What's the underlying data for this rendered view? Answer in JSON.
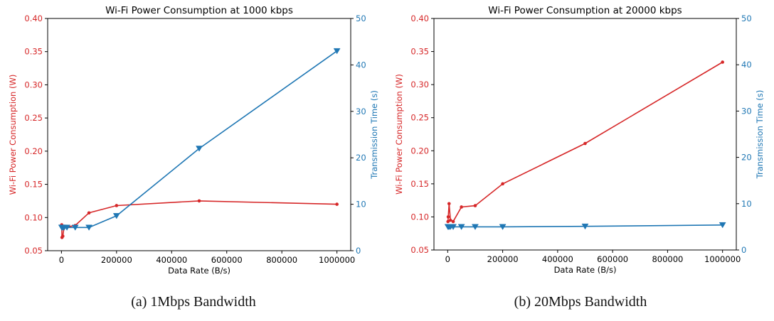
{
  "chart_data": [
    {
      "type": "line",
      "title": "Wi-Fi Power Consumption at 1000 kbps",
      "xlabel": "Data Rate (B/s)",
      "ylabel": "Wi-Fi Power Consumption (W)",
      "y2label": "Transmission Time (s)",
      "xlim": [
        -50000,
        1050000
      ],
      "ylim": [
        0.05,
        0.4
      ],
      "y2lim": [
        0,
        50
      ],
      "xticks": [
        0,
        200000,
        400000,
        600000,
        800000,
        1000000
      ],
      "xtick_labels": [
        "0",
        "200000",
        "400000",
        "600000",
        "800000",
        "1000000"
      ],
      "yticks": [
        0.05,
        0.1,
        0.15,
        0.2,
        0.25,
        0.3,
        0.35,
        0.4
      ],
      "ytick_labels": [
        "0.05",
        "0.10",
        "0.15",
        "0.20",
        "0.25",
        "0.30",
        "0.35",
        "0.40"
      ],
      "y2ticks": [
        0,
        10,
        20,
        30,
        40,
        50
      ],
      "y2tick_labels": [
        "0",
        "10",
        "20",
        "30",
        "40",
        "50"
      ],
      "grid": false,
      "colors": {
        "power": "#d62728",
        "time": "#1f77b4"
      },
      "series": [
        {
          "axis": "left",
          "marker": "circle",
          "color": "#d62728",
          "x": [
            1000,
            2000,
            5000,
            10000,
            20000,
            50000,
            100000,
            200000,
            500000,
            1000000
          ],
          "y": [
            0.089,
            0.07,
            0.072,
            0.086,
            0.086,
            0.088,
            0.107,
            0.118,
            0.125,
            0.12
          ]
        },
        {
          "axis": "right",
          "marker": "triangle-down",
          "color": "#1f77b4",
          "x": [
            1000,
            2000,
            5000,
            10000,
            20000,
            50000,
            100000,
            200000,
            500000,
            1000000
          ],
          "y": [
            5.0,
            5.0,
            5.0,
            5.0,
            5.0,
            5.0,
            5.0,
            7.5,
            22.0,
            43.0
          ]
        }
      ]
    },
    {
      "type": "line",
      "title": "Wi-Fi Power Consumption at 20000 kbps",
      "xlabel": "Data Rate (B/s)",
      "ylabel": "Wi-Fi Power Consumption (W)",
      "y2label": "Transmission Time (s)",
      "xlim": [
        -50000,
        1050000
      ],
      "ylim": [
        0.05,
        0.4
      ],
      "y2lim": [
        0,
        50
      ],
      "xticks": [
        0,
        200000,
        400000,
        600000,
        800000,
        1000000
      ],
      "xtick_labels": [
        "0",
        "200000",
        "400000",
        "600000",
        "800000",
        "1000000"
      ],
      "yticks": [
        0.05,
        0.1,
        0.15,
        0.2,
        0.25,
        0.3,
        0.35,
        0.4
      ],
      "ytick_labels": [
        "0.05",
        "0.10",
        "0.15",
        "0.20",
        "0.25",
        "0.30",
        "0.35",
        "0.40"
      ],
      "y2ticks": [
        0,
        10,
        20,
        30,
        40,
        50
      ],
      "y2tick_labels": [
        "0",
        "10",
        "20",
        "30",
        "40",
        "50"
      ],
      "grid": false,
      "colors": {
        "power": "#d62728",
        "time": "#1f77b4"
      },
      "series": [
        {
          "axis": "left",
          "marker": "circle",
          "color": "#d62728",
          "x": [
            1000,
            2000,
            5000,
            10000,
            20000,
            50000,
            100000,
            200000,
            500000,
            1000000
          ],
          "y": [
            0.093,
            0.1,
            0.12,
            0.095,
            0.093,
            0.115,
            0.117,
            0.15,
            0.211,
            0.334
          ]
        },
        {
          "axis": "right",
          "marker": "triangle-down",
          "color": "#1f77b4",
          "x": [
            1000,
            2000,
            5000,
            10000,
            20000,
            50000,
            100000,
            200000,
            500000,
            1000000
          ],
          "y": [
            5.0,
            5.0,
            5.0,
            5.0,
            5.0,
            5.0,
            5.0,
            5.0,
            5.1,
            5.4
          ]
        }
      ]
    }
  ],
  "captions": {
    "a": "(a) 1Mbps Bandwidth",
    "b": "(b) 20Mbps Bandwidth"
  }
}
